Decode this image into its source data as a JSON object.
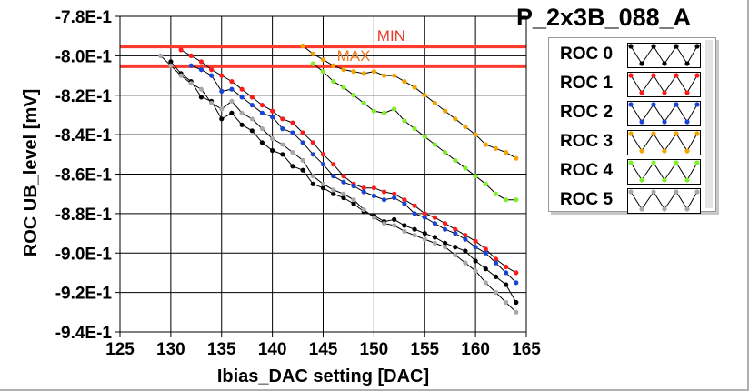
{
  "chart_data": {
    "type": "line",
    "title": "P_2x3B_088_A",
    "xlabel": "Ibias_DAC setting [DAC]",
    "ylabel": "ROC UB_level [mV]",
    "xlim": [
      125,
      165
    ],
    "ylim": [
      -0.94,
      -0.78
    ],
    "xticks": [
      125,
      130,
      135,
      140,
      145,
      150,
      155,
      160,
      165
    ],
    "yticks": [
      -0.78,
      -0.8,
      -0.82,
      -0.84,
      -0.86,
      -0.88,
      -0.9,
      -0.92,
      -0.94
    ],
    "xtick_labels": [
      "125",
      "130",
      "135",
      "140",
      "145",
      "150",
      "155",
      "160",
      "165"
    ],
    "ytick_labels": [
      "-7.8E-1",
      "-8.0E-1",
      "-8.2E-1",
      "-8.4E-1",
      "-8.6E-1",
      "-8.8E-1",
      "-9.0E-1",
      "-9.2E-1",
      "-9.4E-1"
    ],
    "grid": true,
    "hlines": [
      {
        "name": "MIN",
        "y": -0.7953,
        "color": "#ff3b2f",
        "label_x": 151.7
      },
      {
        "name": "MAX",
        "y": -0.8053,
        "color": "#ff3b2f",
        "label_x": 148.0
      }
    ],
    "series": [
      {
        "name": "ROC 0",
        "color": "#000000",
        "x": [
          130,
          131,
          132,
          133,
          134,
          135,
          136,
          137,
          138,
          139,
          140,
          141,
          142,
          143,
          144,
          145,
          146,
          147,
          148,
          149,
          150,
          151,
          152,
          153,
          154,
          155,
          156,
          157,
          158,
          159,
          160,
          161,
          162,
          163,
          164
        ],
        "y": [
          -0.803,
          -0.809,
          -0.813,
          -0.821,
          -0.823,
          -0.832,
          -0.829,
          -0.835,
          -0.838,
          -0.844,
          -0.848,
          -0.85,
          -0.856,
          -0.858,
          -0.865,
          -0.867,
          -0.87,
          -0.872,
          -0.875,
          -0.879,
          -0.881,
          -0.884,
          -0.883,
          -0.886,
          -0.888,
          -0.89,
          -0.892,
          -0.895,
          -0.897,
          -0.899,
          -0.904,
          -0.908,
          -0.912,
          -0.916,
          -0.925
        ]
      },
      {
        "name": "ROC 1",
        "color": "#ff1a1a",
        "x": [
          131,
          132,
          133,
          134,
          135,
          136,
          137,
          138,
          139,
          140,
          141,
          142,
          143,
          144,
          145,
          146,
          147,
          148,
          149,
          150,
          151,
          152,
          153,
          154,
          155,
          156,
          157,
          158,
          159,
          160,
          161,
          162,
          163,
          164
        ],
        "y": [
          -0.797,
          -0.8,
          -0.803,
          -0.807,
          -0.81,
          -0.813,
          -0.817,
          -0.821,
          -0.825,
          -0.828,
          -0.832,
          -0.834,
          -0.839,
          -0.844,
          -0.85,
          -0.855,
          -0.861,
          -0.865,
          -0.867,
          -0.867,
          -0.869,
          -0.87,
          -0.873,
          -0.876,
          -0.88,
          -0.882,
          -0.885,
          -0.888,
          -0.891,
          -0.894,
          -0.898,
          -0.903,
          -0.907,
          -0.91
        ]
      },
      {
        "name": "ROC 2",
        "color": "#1746d6",
        "x": [
          132,
          133,
          134,
          135,
          136,
          137,
          138,
          139,
          140,
          141,
          142,
          143,
          144,
          145,
          146,
          147,
          148,
          149,
          150,
          151,
          152,
          153,
          154,
          155,
          156,
          157,
          158,
          159,
          160,
          161,
          162,
          163,
          164
        ],
        "y": [
          -0.805,
          -0.807,
          -0.81,
          -0.818,
          -0.817,
          -0.821,
          -0.825,
          -0.829,
          -0.831,
          -0.837,
          -0.839,
          -0.844,
          -0.85,
          -0.855,
          -0.861,
          -0.864,
          -0.866,
          -0.869,
          -0.871,
          -0.873,
          -0.872,
          -0.875,
          -0.88,
          -0.882,
          -0.885,
          -0.888,
          -0.89,
          -0.893,
          -0.897,
          -0.9,
          -0.905,
          -0.91,
          -0.915
        ]
      },
      {
        "name": "ROC 3",
        "color": "#f5a300",
        "x": [
          143,
          144,
          145,
          146,
          147,
          148,
          149,
          150,
          151,
          152,
          153,
          154,
          155,
          156,
          157,
          158,
          159,
          160,
          161,
          162,
          163,
          164
        ],
        "y": [
          -0.795,
          -0.799,
          -0.802,
          -0.805,
          -0.807,
          -0.808,
          -0.809,
          -0.808,
          -0.81,
          -0.81,
          -0.813,
          -0.816,
          -0.82,
          -0.824,
          -0.828,
          -0.832,
          -0.836,
          -0.84,
          -0.845,
          -0.847,
          -0.849,
          -0.852
        ]
      },
      {
        "name": "ROC 4",
        "color": "#7ef02a",
        "x": [
          144,
          145,
          146,
          147,
          148,
          149,
          150,
          151,
          152,
          153,
          154,
          155,
          156,
          157,
          158,
          159,
          160,
          161,
          162,
          163,
          164
        ],
        "y": [
          -0.804,
          -0.808,
          -0.813,
          -0.816,
          -0.82,
          -0.824,
          -0.828,
          -0.829,
          -0.827,
          -0.833,
          -0.837,
          -0.841,
          -0.845,
          -0.849,
          -0.853,
          -0.857,
          -0.861,
          -0.865,
          -0.87,
          -0.873,
          -0.873
        ]
      },
      {
        "name": "ROC 5",
        "color": "#a8a8a8",
        "x": [
          129,
          130,
          131,
          132,
          133,
          134,
          135,
          136,
          137,
          138,
          139,
          140,
          141,
          142,
          143,
          144,
          145,
          146,
          147,
          148,
          149,
          150,
          151,
          152,
          153,
          154,
          155,
          156,
          157,
          158,
          159,
          160,
          161,
          162,
          163,
          164
        ],
        "y": [
          -0.8,
          -0.805,
          -0.81,
          -0.814,
          -0.817,
          -0.824,
          -0.827,
          -0.823,
          -0.829,
          -0.832,
          -0.837,
          -0.842,
          -0.845,
          -0.849,
          -0.853,
          -0.861,
          -0.865,
          -0.868,
          -0.87,
          -0.873,
          -0.878,
          -0.882,
          -0.885,
          -0.886,
          -0.889,
          -0.891,
          -0.893,
          -0.895,
          -0.897,
          -0.901,
          -0.905,
          -0.909,
          -0.915,
          -0.92,
          -0.925,
          -0.93
        ]
      }
    ]
  }
}
